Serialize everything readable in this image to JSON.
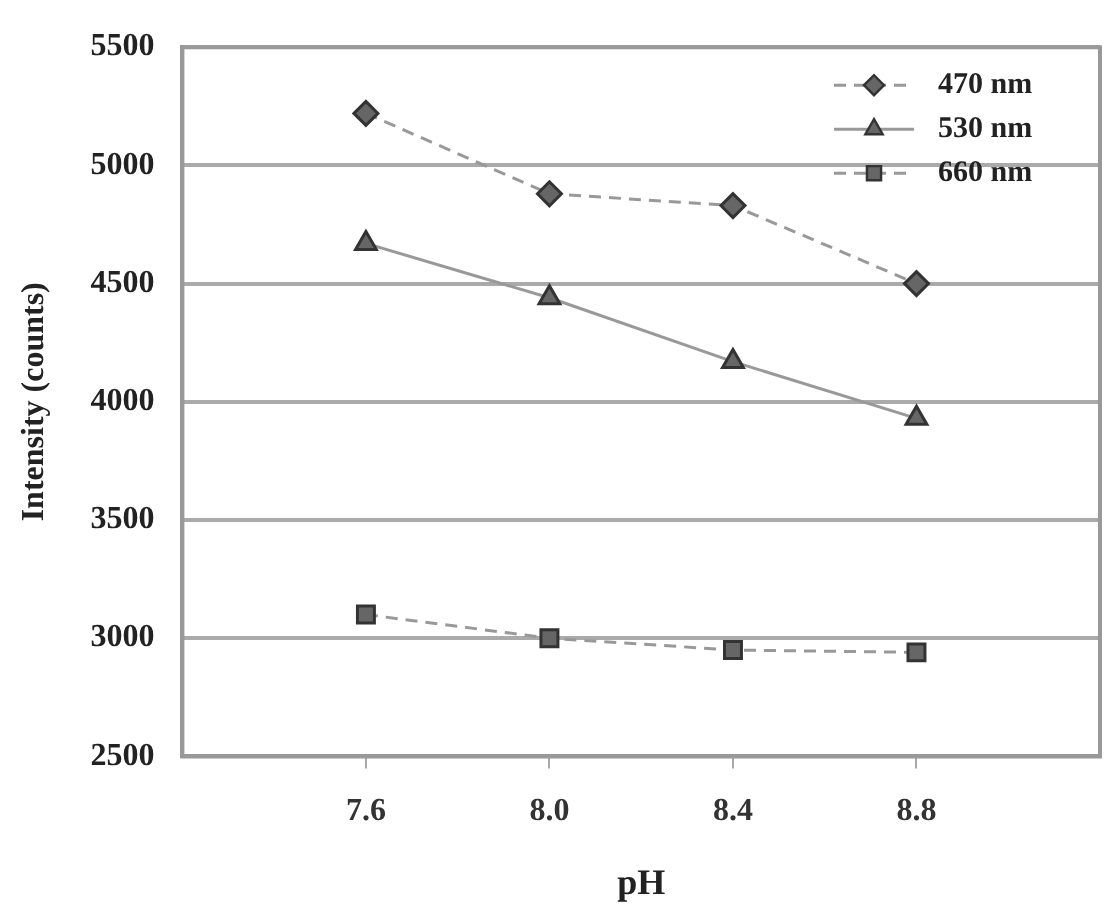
{
  "chart_data": {
    "type": "line",
    "xlabel": "pH",
    "ylabel": "Intensity (counts)",
    "x": [
      7.6,
      8.0,
      8.4,
      8.8
    ],
    "xlim": [
      7.2,
      9.2
    ],
    "xticks": [
      {
        "value": 7.6,
        "label": "7.6"
      },
      {
        "value": 8,
        "label": "8.0"
      },
      {
        "value": 8.4,
        "label": "8.4"
      },
      {
        "value": 8.8,
        "label": "8.8"
      }
    ],
    "ylim": [
      2500,
      5500
    ],
    "yticks": [
      2500,
      3000,
      3500,
      4000,
      4500,
      5000,
      5500
    ],
    "grid": "y",
    "legend": "top right",
    "series": [
      {
        "name": "470 nm",
        "color": "#666666",
        "marker": "diamond",
        "line_style": "dashed",
        "values": [
          5220,
          4880,
          4830,
          4500
        ]
      },
      {
        "name": "530 nm",
        "color": "#666666",
        "marker": "triangle",
        "line_style": "solid",
        "values": [
          4670,
          4440,
          4170,
          3930
        ]
      },
      {
        "name": "660 nm",
        "color": "#666666",
        "marker": "square",
        "line_style": "dashed",
        "values": [
          3100,
          3000,
          2950,
          2940
        ]
      }
    ]
  }
}
